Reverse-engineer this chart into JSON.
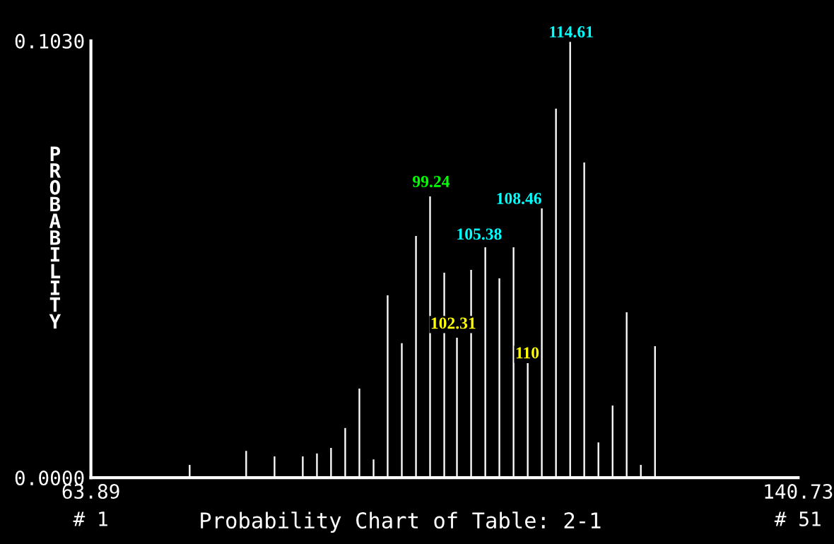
{
  "chart_data": {
    "type": "bar",
    "title": "Probability Chart of Table: 2-1",
    "ylabel": "PROBABILITY",
    "x": [
      74.62,
      80.76,
      83.84,
      86.91,
      88.45,
      89.98,
      91.52,
      93.06,
      94.6,
      96.13,
      97.67,
      99.21,
      100.74,
      102.28,
      103.66,
      105.2,
      106.74,
      108.27,
      109.81,
      111.35,
      112.88,
      114.42,
      115.96,
      117.49,
      119.03,
      120.57,
      122.1,
      123.64,
      125.18
    ],
    "series": [
      {
        "color": "#ffffff",
        "values": [
          0.003,
          0.0063,
          0.005,
          0.005,
          0.0057,
          0.007,
          0.0117,
          0.021,
          0.0043,
          0.043,
          0.0317,
          0.057,
          0.0663,
          0.0483,
          0.033,
          0.049,
          0.0543,
          0.047,
          0.0543,
          0.027,
          0.0637,
          0.087,
          0.103,
          0.0743,
          0.0083,
          0.017,
          0.039,
          0.003,
          0.031
        ]
      }
    ],
    "annotations": [
      {
        "text": "99.24",
        "x": 100.85,
        "y": 0.0677
      },
      {
        "text": "102.31",
        "x": 103.26,
        "y": 0.0343
      },
      {
        "text": "105.38",
        "x": 106.07,
        "y": 0.0553
      },
      {
        "text": "108.46",
        "x": 112.88,
        "y": 0.0637
      },
      {
        "text": "110",
        "x": 111.3,
        "y": 0.0273
      },
      {
        "text": "114.61",
        "x": 116.07,
        "y": 0.103
      },
      "# 1",
      "# 51"
    ],
    "xlim": [
      63.89,
      140.73
    ],
    "xticks": [
      63.89,
      140.73
    ],
    "ylim": [
      0,
      0.103
    ],
    "yticks": [
      {
        "value": 0,
        "label": "0.0000"
      },
      {
        "value": 0.103,
        "label": "0.1030"
      }
    ],
    "grid": false,
    "legend": false
  }
}
